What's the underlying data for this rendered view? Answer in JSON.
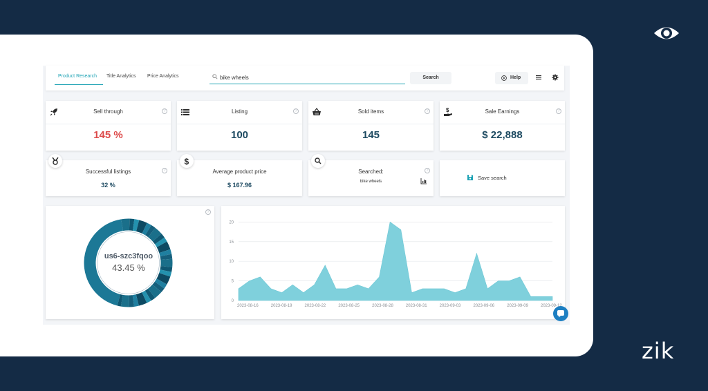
{
  "brand": {
    "logo_text": "zik"
  },
  "tabs": [
    "Product Research",
    "Title Analytics",
    "Price Analytics"
  ],
  "search": {
    "value": "bike wheels",
    "button": "Search"
  },
  "toolbar": {
    "help": "Help"
  },
  "stats": {
    "sell_through": {
      "title": "Sell through",
      "value": "145 %"
    },
    "listing": {
      "title": "Listing",
      "value": "100"
    },
    "sold_items": {
      "title": "Sold items",
      "value": "145"
    },
    "sale_earnings": {
      "title": "Sale Earnings",
      "value": "$ 22,888"
    },
    "successful_listings": {
      "title": "Successful listings",
      "value": "32 %"
    },
    "avg_price": {
      "title": "Average product price",
      "value": "$ 167.96"
    },
    "searched": {
      "title": "Searched:",
      "value": "bike wheels"
    },
    "save_search": {
      "label": "Save search"
    }
  },
  "donut": {
    "name": "us6-szc3fqoo",
    "percent": "43.45 %",
    "percent_value": 43.45
  },
  "chart_data": {
    "type": "area",
    "title": "",
    "xlabel": "",
    "ylabel": "",
    "ylim": [
      0,
      22
    ],
    "yticks": [
      0,
      5,
      10,
      15,
      20
    ],
    "x_tick_labels": [
      "2023-08-16",
      "2023-08-19",
      "2023-08-22",
      "2023-08-25",
      "2023-08-28",
      "2023-08-31",
      "2023-09-03",
      "2023-09-06",
      "2023-09-09",
      "2023-09-12"
    ],
    "values": [
      3,
      5,
      6,
      3,
      2,
      4,
      2,
      4,
      9,
      3,
      3,
      4,
      3,
      6,
      20,
      18,
      2,
      3,
      3,
      3,
      2,
      3,
      12,
      3,
      5,
      5,
      6,
      1,
      1,
      1
    ],
    "color": "#7fd0dc"
  },
  "colors": {
    "accent": "#1fa3b5",
    "value": "#1d4a61",
    "red": "#dd4a4a",
    "background": "#142b45"
  }
}
